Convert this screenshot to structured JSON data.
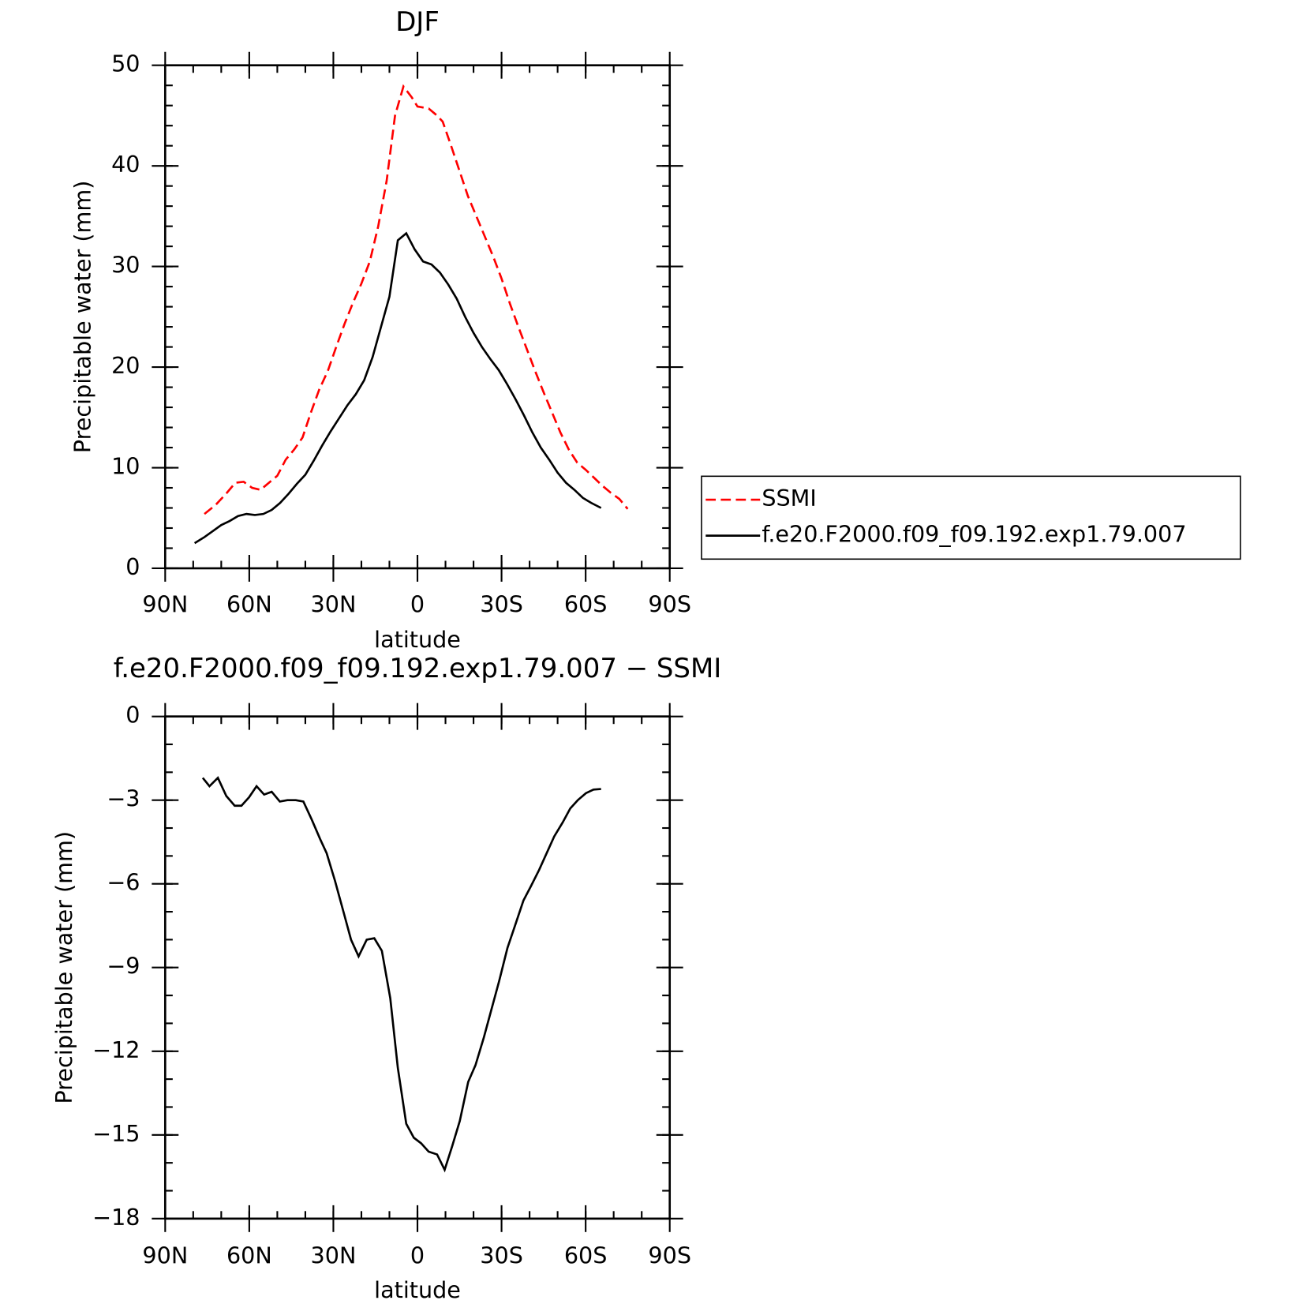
{
  "chart_data": [
    {
      "type": "line",
      "title": "DJF",
      "xlabel": "latitude",
      "ylabel": "Precipitable water (mm)",
      "xlim": [
        90,
        -90
      ],
      "xticks": [
        {
          "value": 90,
          "label": "90N"
        },
        {
          "value": 60,
          "label": "60N"
        },
        {
          "value": 30,
          "label": "30N"
        },
        0,
        {
          "value": -30,
          "label": "30S"
        },
        {
          "value": -60,
          "label": "60S"
        },
        {
          "value": -90,
          "label": "90S"
        }
      ],
      "x_minor_step": 10,
      "ylim": [
        0,
        50
      ],
      "yticks": [
        0,
        10,
        20,
        30,
        40,
        50
      ],
      "y_minor_step": 2,
      "legend": "right",
      "series": [
        {
          "name": "SSMI",
          "color": "#ff0000",
          "dash": true,
          "x": [
            76,
            72,
            68,
            65,
            62,
            59,
            56,
            53,
            50,
            47,
            44,
            41,
            38,
            35,
            32,
            29,
            26,
            23,
            20,
            17,
            14,
            11,
            8,
            5,
            2,
            0,
            -4,
            -7,
            -9,
            -12,
            -15,
            -18,
            -21,
            -24,
            -27,
            -30,
            -33,
            -36,
            -39,
            -42,
            -45,
            -48,
            -51,
            -54,
            -57,
            -60,
            -63,
            -66,
            -69,
            -72,
            -75
          ],
          "values": [
            5.4,
            6.3,
            7.5,
            8.5,
            8.6,
            8.0,
            7.8,
            8.5,
            9.2,
            10.8,
            11.8,
            13.0,
            15.5,
            17.8,
            19.6,
            22.0,
            24.3,
            26.4,
            28.3,
            30.5,
            34,
            38.5,
            45,
            47.9,
            46.8,
            45.9,
            45.7,
            45.0,
            44.4,
            42,
            39.5,
            37,
            35,
            33,
            31,
            28.8,
            26.3,
            24,
            21.8,
            19.6,
            17.5,
            15.5,
            13.5,
            11.8,
            10.5,
            9.8,
            9.0,
            8.2,
            7.5,
            6.9,
            5.9
          ]
        },
        {
          "name": "f.e20.F2000.f09_f09.192.exp1.79.007",
          "color": "#000000",
          "dash": false,
          "x": [
            79.5,
            76,
            73,
            70,
            67,
            64,
            61,
            58,
            55,
            52,
            49,
            46,
            43,
            40,
            37,
            34,
            31,
            28,
            25,
            22,
            19,
            16,
            13,
            10,
            7,
            4,
            1,
            -2,
            -5,
            -8,
            -11,
            -14,
            -17,
            -20,
            -23,
            -26,
            -29,
            -32,
            -35,
            -38,
            -41,
            -44,
            -47,
            -50,
            -53,
            -56,
            -59,
            -62,
            -65.5
          ],
          "values": [
            2.5,
            3.1,
            3.7,
            4.3,
            4.7,
            5.2,
            5.4,
            5.3,
            5.4,
            5.8,
            6.5,
            7.4,
            8.4,
            9.3,
            10.7,
            12.2,
            13.6,
            14.9,
            16.2,
            17.3,
            18.7,
            21,
            24,
            27,
            32.6,
            33.3,
            31.7,
            30.5,
            30.2,
            29.4,
            28.2,
            26.8,
            25,
            23.4,
            22.0,
            20.8,
            19.7,
            18.3,
            16.8,
            15.2,
            13.5,
            12,
            10.8,
            9.5,
            8.5,
            7.8,
            7.0,
            6.5,
            6.0
          ]
        }
      ]
    },
    {
      "type": "line",
      "title": "f.e20.F2000.f09_f09.192.exp1.79.007 − SSMI",
      "xlabel": "latitude",
      "ylabel": "Precipitable water (mm)",
      "xlim": [
        90,
        -90
      ],
      "xticks": [
        {
          "value": 90,
          "label": "90N"
        },
        {
          "value": 60,
          "label": "60N"
        },
        {
          "value": 30,
          "label": "30N"
        },
        0,
        {
          "value": -30,
          "label": "30S"
        },
        {
          "value": -60,
          "label": "60S"
        },
        {
          "value": -90,
          "label": "90S"
        }
      ],
      "x_minor_step": 10,
      "ylim": [
        -18,
        0
      ],
      "yticks": [
        {
          "value": -18,
          "label": "−18"
        },
        {
          "value": -15,
          "label": "−15"
        },
        {
          "value": -12,
          "label": "−12"
        },
        {
          "value": -9,
          "label": "−9"
        },
        {
          "value": -6,
          "label": "−6"
        },
        {
          "value": -3,
          "label": "−3"
        },
        0
      ],
      "y_minor_step": 1,
      "series": [
        {
          "color": "#000000",
          "dash": false,
          "x": [
            76.6,
            74.2,
            71.2,
            68.2,
            65.2,
            62.8,
            60.1,
            57.4,
            54.7,
            52,
            49.1,
            46.4,
            43.4,
            40.7,
            37.7,
            34.7,
            32.4,
            29.4,
            26.4,
            23.7,
            21,
            18.1,
            15.4,
            12.7,
            9.7,
            7,
            4,
            1.3,
            -1.3,
            -4,
            -7,
            -9.7,
            -12.4,
            -15.1,
            -18.1,
            -20.7,
            -23.7,
            -26.4,
            -29.1,
            -32.1,
            -34.8,
            -37.8,
            -40.4,
            -43.4,
            -46.1,
            -48.8,
            -51.8,
            -54.5,
            -57.2,
            -60.1,
            -62.8,
            -65.5
          ],
          "values": [
            -2.2,
            -2.5,
            -2.2,
            -2.85,
            -3.2,
            -3.2,
            -2.9,
            -2.5,
            -2.8,
            -2.7,
            -3.05,
            -3.0,
            -3.0,
            -3.05,
            -3.7,
            -4.4,
            -4.9,
            -5.9,
            -7.0,
            -8.0,
            -8.6,
            -8.0,
            -7.95,
            -8.4,
            -10.1,
            -12.6,
            -14.6,
            -15.1,
            -15.3,
            -15.6,
            -15.7,
            -16.25,
            -15.4,
            -14.5,
            -13.1,
            -12.5,
            -11.5,
            -10.5,
            -9.5,
            -8.3,
            -7.5,
            -6.6,
            -6.1,
            -5.5,
            -4.9,
            -4.3,
            -3.8,
            -3.3,
            -3.0,
            -2.75,
            -2.62,
            -2.6
          ]
        }
      ]
    }
  ]
}
